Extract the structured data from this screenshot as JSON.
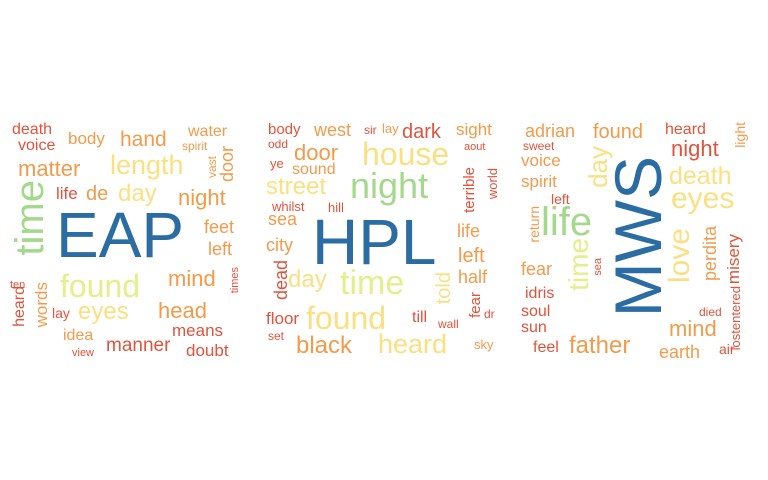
{
  "palette": {
    "red": "#e2533c",
    "orange": "#f39b4b",
    "yellow": "#fbe082",
    "lime": "#e3ef8a",
    "green": "#a4d88c",
    "blue": "#2b6ca3"
  },
  "clouds": [
    {
      "center": "EAP",
      "words": [
        "death",
        "voice",
        "body",
        "hand",
        "water",
        "spirit",
        "vast",
        "door",
        "matter",
        "length",
        "time",
        "life",
        "de",
        "day",
        "night",
        "feet",
        "left",
        "EAP",
        "ten",
        "found",
        "mind",
        "times",
        "heard",
        "words",
        "lay",
        "eyes",
        "head",
        "means",
        "idea",
        "view",
        "manner",
        "doubt"
      ]
    },
    {
      "center": "HPL",
      "words": [
        "body",
        "west",
        "sir",
        "lay",
        "dark",
        "sight",
        "odd",
        "door",
        "house",
        "aout",
        "ye",
        "sound",
        "night",
        "terrible",
        "street",
        "world",
        "whilst",
        "hill",
        "sea",
        "life",
        "city",
        "HPL",
        "left",
        "dead",
        "day",
        "time",
        "half",
        "told",
        "fear",
        "floor",
        "found",
        "till",
        "wall",
        "dr",
        "set",
        "black",
        "heard",
        "sky"
      ]
    },
    {
      "center": "MWS",
      "words": [
        "adrian",
        "found",
        "heard",
        "sweet",
        "night",
        "light",
        "voice",
        "day",
        "spirit",
        "death",
        "left",
        "eyes",
        "life",
        "MWS",
        "return",
        "love",
        "fear",
        "sea",
        "perdita",
        "misery",
        "idris",
        "time",
        "soul",
        "died",
        "lostentered",
        "sun",
        "mind",
        "feel",
        "father",
        "earth",
        "air"
      ]
    }
  ]
}
